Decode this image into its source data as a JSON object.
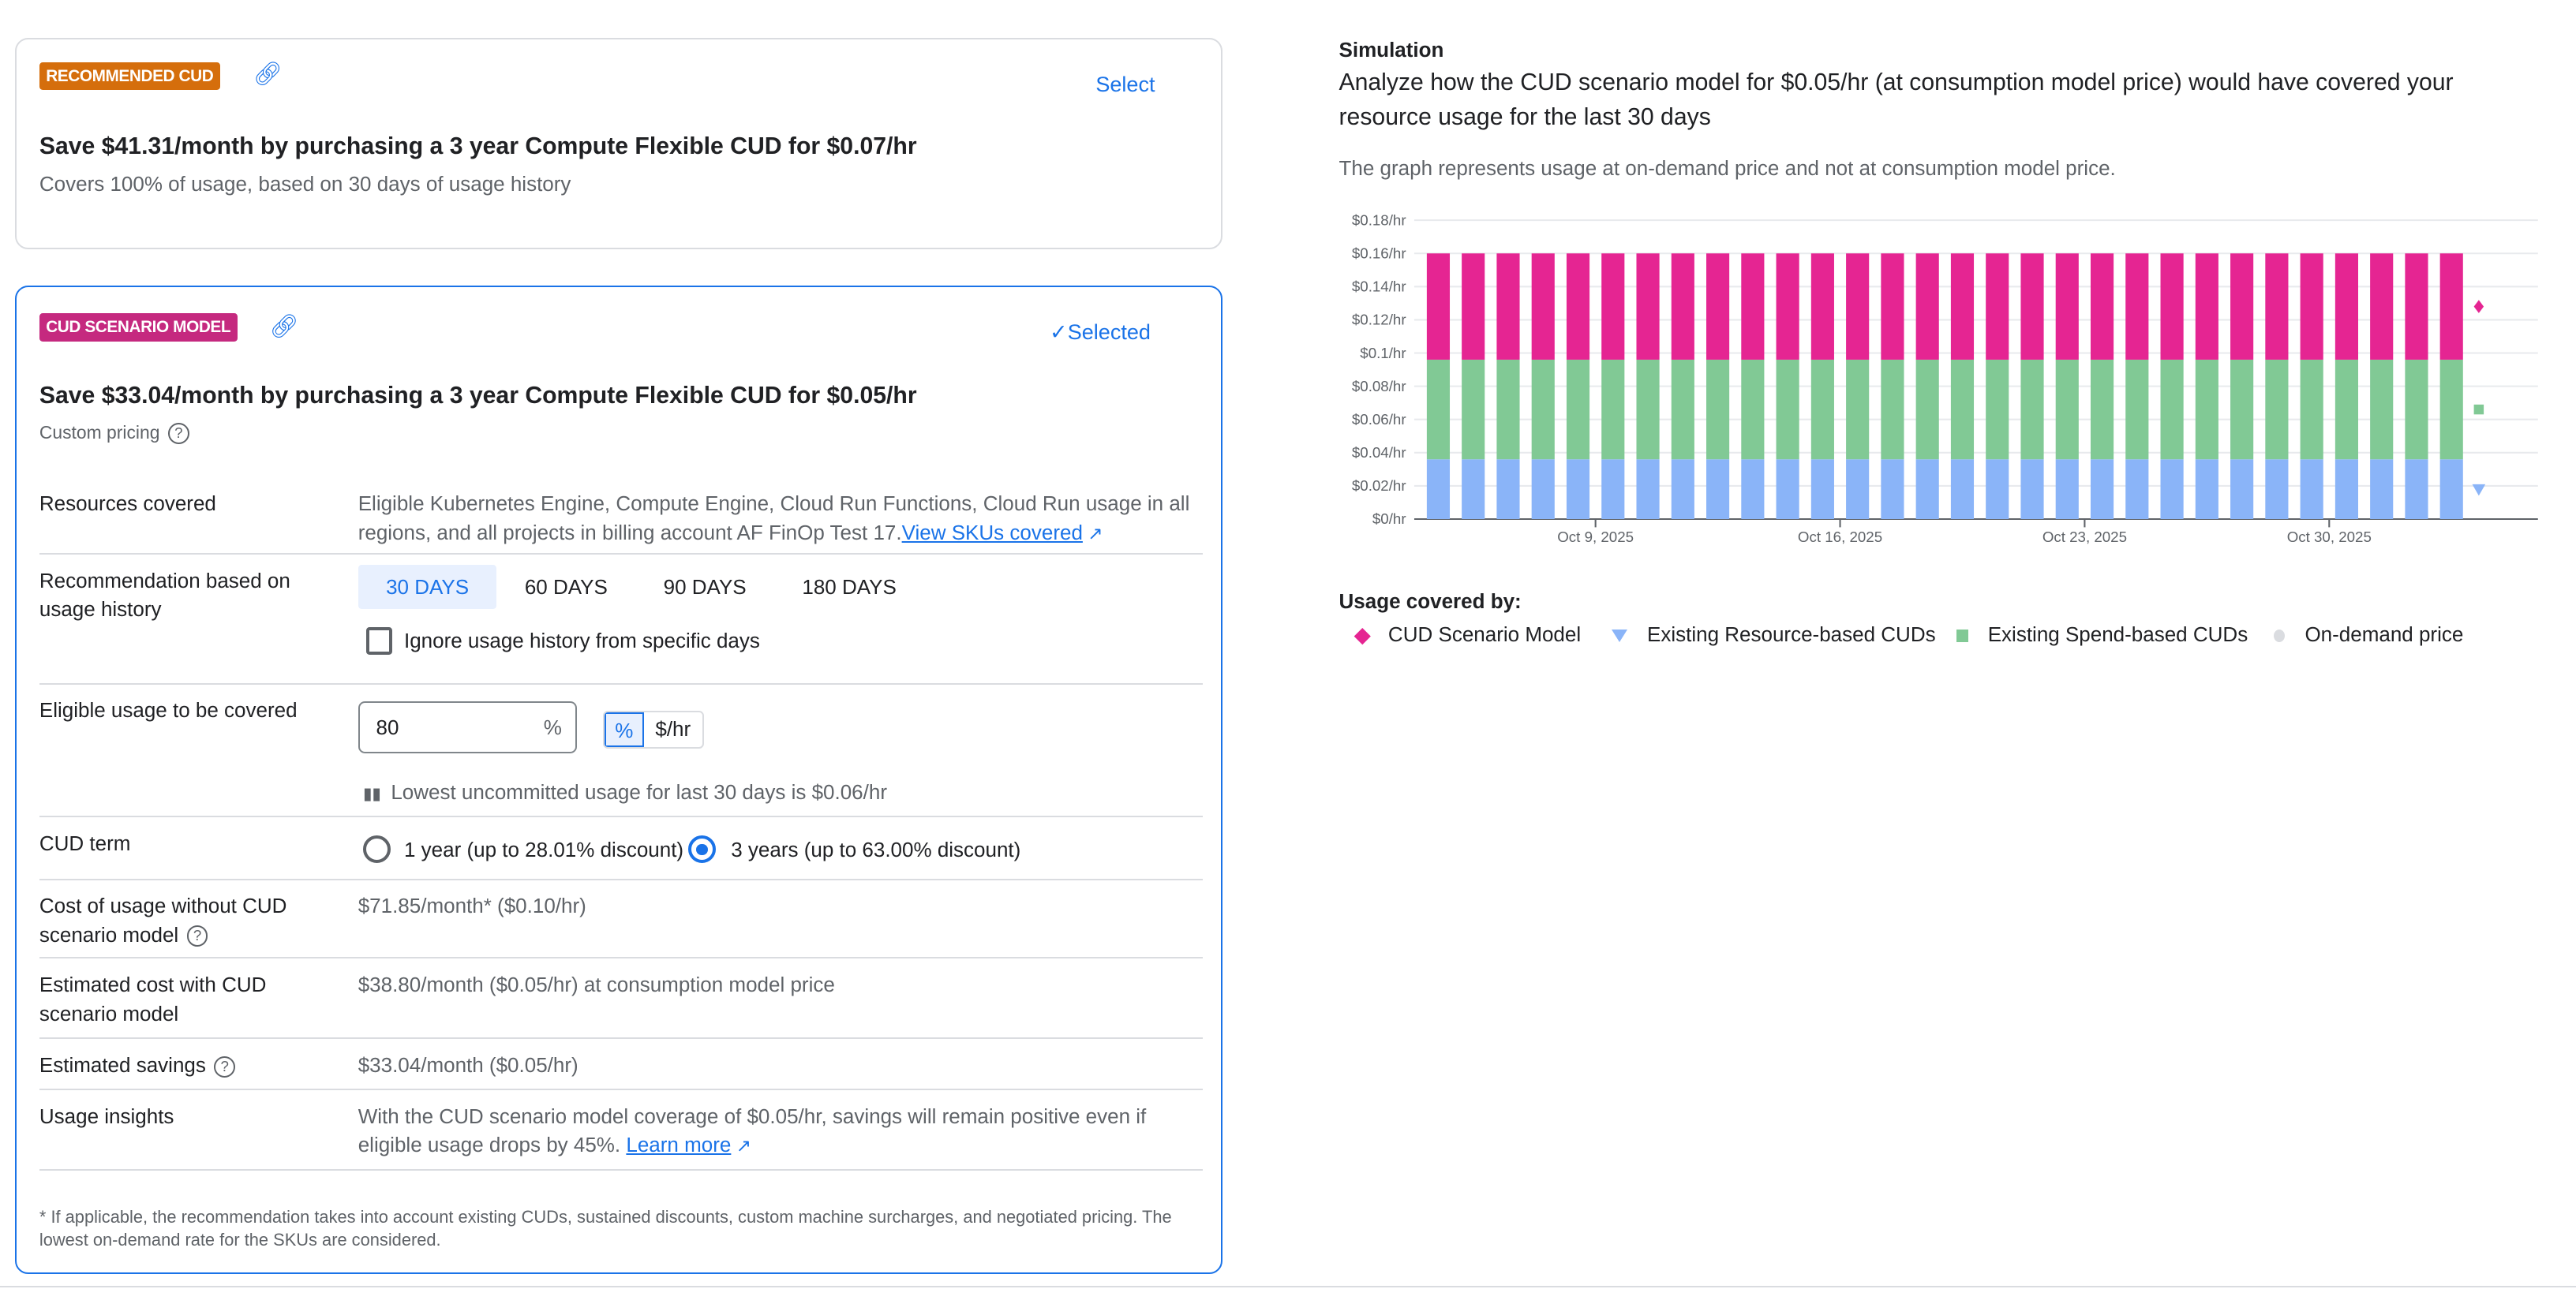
{
  "recommended": {
    "badge": "RECOMMENDED CUD",
    "badge_color": "#d56e0c",
    "select_label": "Select",
    "title": "Save $41.31/month by purchasing a 3 year Compute Flexible CUD for $0.07/hr",
    "subtitle": "Covers 100% of usage, based on 30 days of usage history"
  },
  "scenario": {
    "badge": "CUD SCENARIO MODEL",
    "badge_color": "#c5297f",
    "selected_label": "Selected",
    "title": "Save $33.04/month by purchasing a 3 year Compute Flexible CUD for $0.05/hr",
    "custom_pricing": "Custom pricing",
    "resources": {
      "label": "Resources covered",
      "value": "Eligible Kubernetes Engine, Compute Engine, Cloud Run Functions, Cloud Run usage in all regions, and all projects in billing account AF FinOp Test 17.",
      "link": "View SKUs covered"
    },
    "history": {
      "label": "Recommendation based on usage history",
      "options": [
        "30 DAYS",
        "60 DAYS",
        "90 DAYS",
        "180 DAYS"
      ],
      "selected": "30 DAYS",
      "ignore_label": "Ignore usage history from specific days",
      "ignore_checked": false
    },
    "eligible": {
      "label": "Eligible usage to be covered",
      "value": "80",
      "suffix": "%",
      "unit_options": [
        "%",
        "$/hr"
      ],
      "unit_selected": "%",
      "hint": "Lowest uncommitted usage for last 30 days is $0.06/hr"
    },
    "term": {
      "label": "CUD term",
      "options": [
        "1 year (up to 28.01% discount)",
        "3 years (up to 63.00% discount)"
      ],
      "selected": "3 years (up to 63.00% discount)"
    },
    "cost_without": {
      "label": "Cost of usage without CUD scenario model",
      "value": "$71.85/month* ($0.10/hr)"
    },
    "cost_with": {
      "label": "Estimated cost with CUD scenario model",
      "value": "$38.80/month ($0.05/hr) at consumption model price"
    },
    "savings": {
      "label": "Estimated savings",
      "value": "$33.04/month ($0.05/hr)"
    },
    "insights": {
      "label": "Usage insights",
      "value": "With the CUD scenario model coverage of $0.05/hr, savings will remain positive even if eligible usage drops by 45%.",
      "link": "Learn more"
    },
    "footnote": "* If applicable, the recommendation takes into account existing CUDs, sustained discounts, custom machine surcharges, and negotiated pricing. The lowest on-demand rate for the SKUs are considered."
  },
  "simulation": {
    "heading": "Simulation",
    "description": "Analyze how the CUD scenario model for $0.05/hr (at consumption model price) would have covered your resource usage for the last 30 days",
    "note": "The graph represents usage at on-demand price and not at consumption model price.",
    "legend_title": "Usage covered by:"
  },
  "chart_data": {
    "type": "bar",
    "stacked": true,
    "xlim": [
      "2025-10-04",
      "2025-11-03"
    ],
    "ylim": [
      0,
      0.18
    ],
    "yticks": [
      0,
      0.02,
      0.04,
      0.06,
      0.08,
      0.1,
      0.12,
      0.14,
      0.16,
      0.18
    ],
    "ytick_labels": [
      "$0/hr",
      "$0.02/hr",
      "$0.04/hr",
      "$0.06/hr",
      "$0.08/hr",
      "$0.1/hr",
      "$0.12/hr",
      "$0.14/hr",
      "$0.16/hr",
      "$0.18/hr"
    ],
    "xticks": [
      "2025-10-09",
      "2025-10-16",
      "2025-10-23",
      "2025-10-30"
    ],
    "xtick_labels": [
      "Oct 9, 2025",
      "Oct 16, 2025",
      "Oct 23, 2025",
      "Oct 30, 2025"
    ],
    "grid": true,
    "legend": "bottom",
    "categories": [
      "2025-10-04",
      "2025-10-05",
      "2025-10-06",
      "2025-10-07",
      "2025-10-08",
      "2025-10-09",
      "2025-10-10",
      "2025-10-11",
      "2025-10-12",
      "2025-10-13",
      "2025-10-14",
      "2025-10-15",
      "2025-10-16",
      "2025-10-17",
      "2025-10-18",
      "2025-10-19",
      "2025-10-20",
      "2025-10-21",
      "2025-10-22",
      "2025-10-23",
      "2025-10-24",
      "2025-10-25",
      "2025-10-26",
      "2025-10-27",
      "2025-10-28",
      "2025-10-29",
      "2025-10-30",
      "2025-10-31",
      "2025-11-01",
      "2025-11-02"
    ],
    "series": [
      {
        "name": "Existing Resource-based CUDs",
        "color": "#8ab4f8",
        "marker": "triangle",
        "values": [
          0.036,
          0.036,
          0.036,
          0.036,
          0.036,
          0.036,
          0.036,
          0.036,
          0.036,
          0.036,
          0.036,
          0.036,
          0.036,
          0.036,
          0.036,
          0.036,
          0.036,
          0.036,
          0.036,
          0.036,
          0.036,
          0.036,
          0.036,
          0.036,
          0.036,
          0.036,
          0.036,
          0.036,
          0.036,
          0.036
        ]
      },
      {
        "name": "Existing Spend-based CUDs",
        "color": "#81c995",
        "marker": "square",
        "values": [
          0.06,
          0.06,
          0.06,
          0.06,
          0.06,
          0.06,
          0.06,
          0.06,
          0.06,
          0.06,
          0.06,
          0.06,
          0.06,
          0.06,
          0.06,
          0.06,
          0.06,
          0.06,
          0.06,
          0.06,
          0.06,
          0.06,
          0.06,
          0.06,
          0.06,
          0.06,
          0.06,
          0.06,
          0.06,
          0.06
        ]
      },
      {
        "name": "CUD Scenario Model",
        "color": "#e52592",
        "marker": "diamond",
        "values": [
          0.064,
          0.064,
          0.064,
          0.064,
          0.064,
          0.064,
          0.064,
          0.064,
          0.064,
          0.064,
          0.064,
          0.064,
          0.064,
          0.064,
          0.064,
          0.064,
          0.064,
          0.064,
          0.064,
          0.064,
          0.064,
          0.064,
          0.064,
          0.064,
          0.064,
          0.064,
          0.064,
          0.064,
          0.064,
          0.064
        ]
      },
      {
        "name": "On-demand price",
        "color": "#dadce0",
        "marker": "circle",
        "values": [
          0,
          0,
          0,
          0,
          0,
          0,
          0,
          0,
          0,
          0,
          0,
          0,
          0,
          0,
          0,
          0,
          0,
          0,
          0,
          0,
          0,
          0,
          0,
          0,
          0,
          0,
          0,
          0,
          0,
          0
        ]
      }
    ],
    "legend_order": [
      "CUD Scenario Model",
      "Existing Resource-based CUDs",
      "Existing Spend-based CUDs",
      "On-demand price"
    ]
  }
}
